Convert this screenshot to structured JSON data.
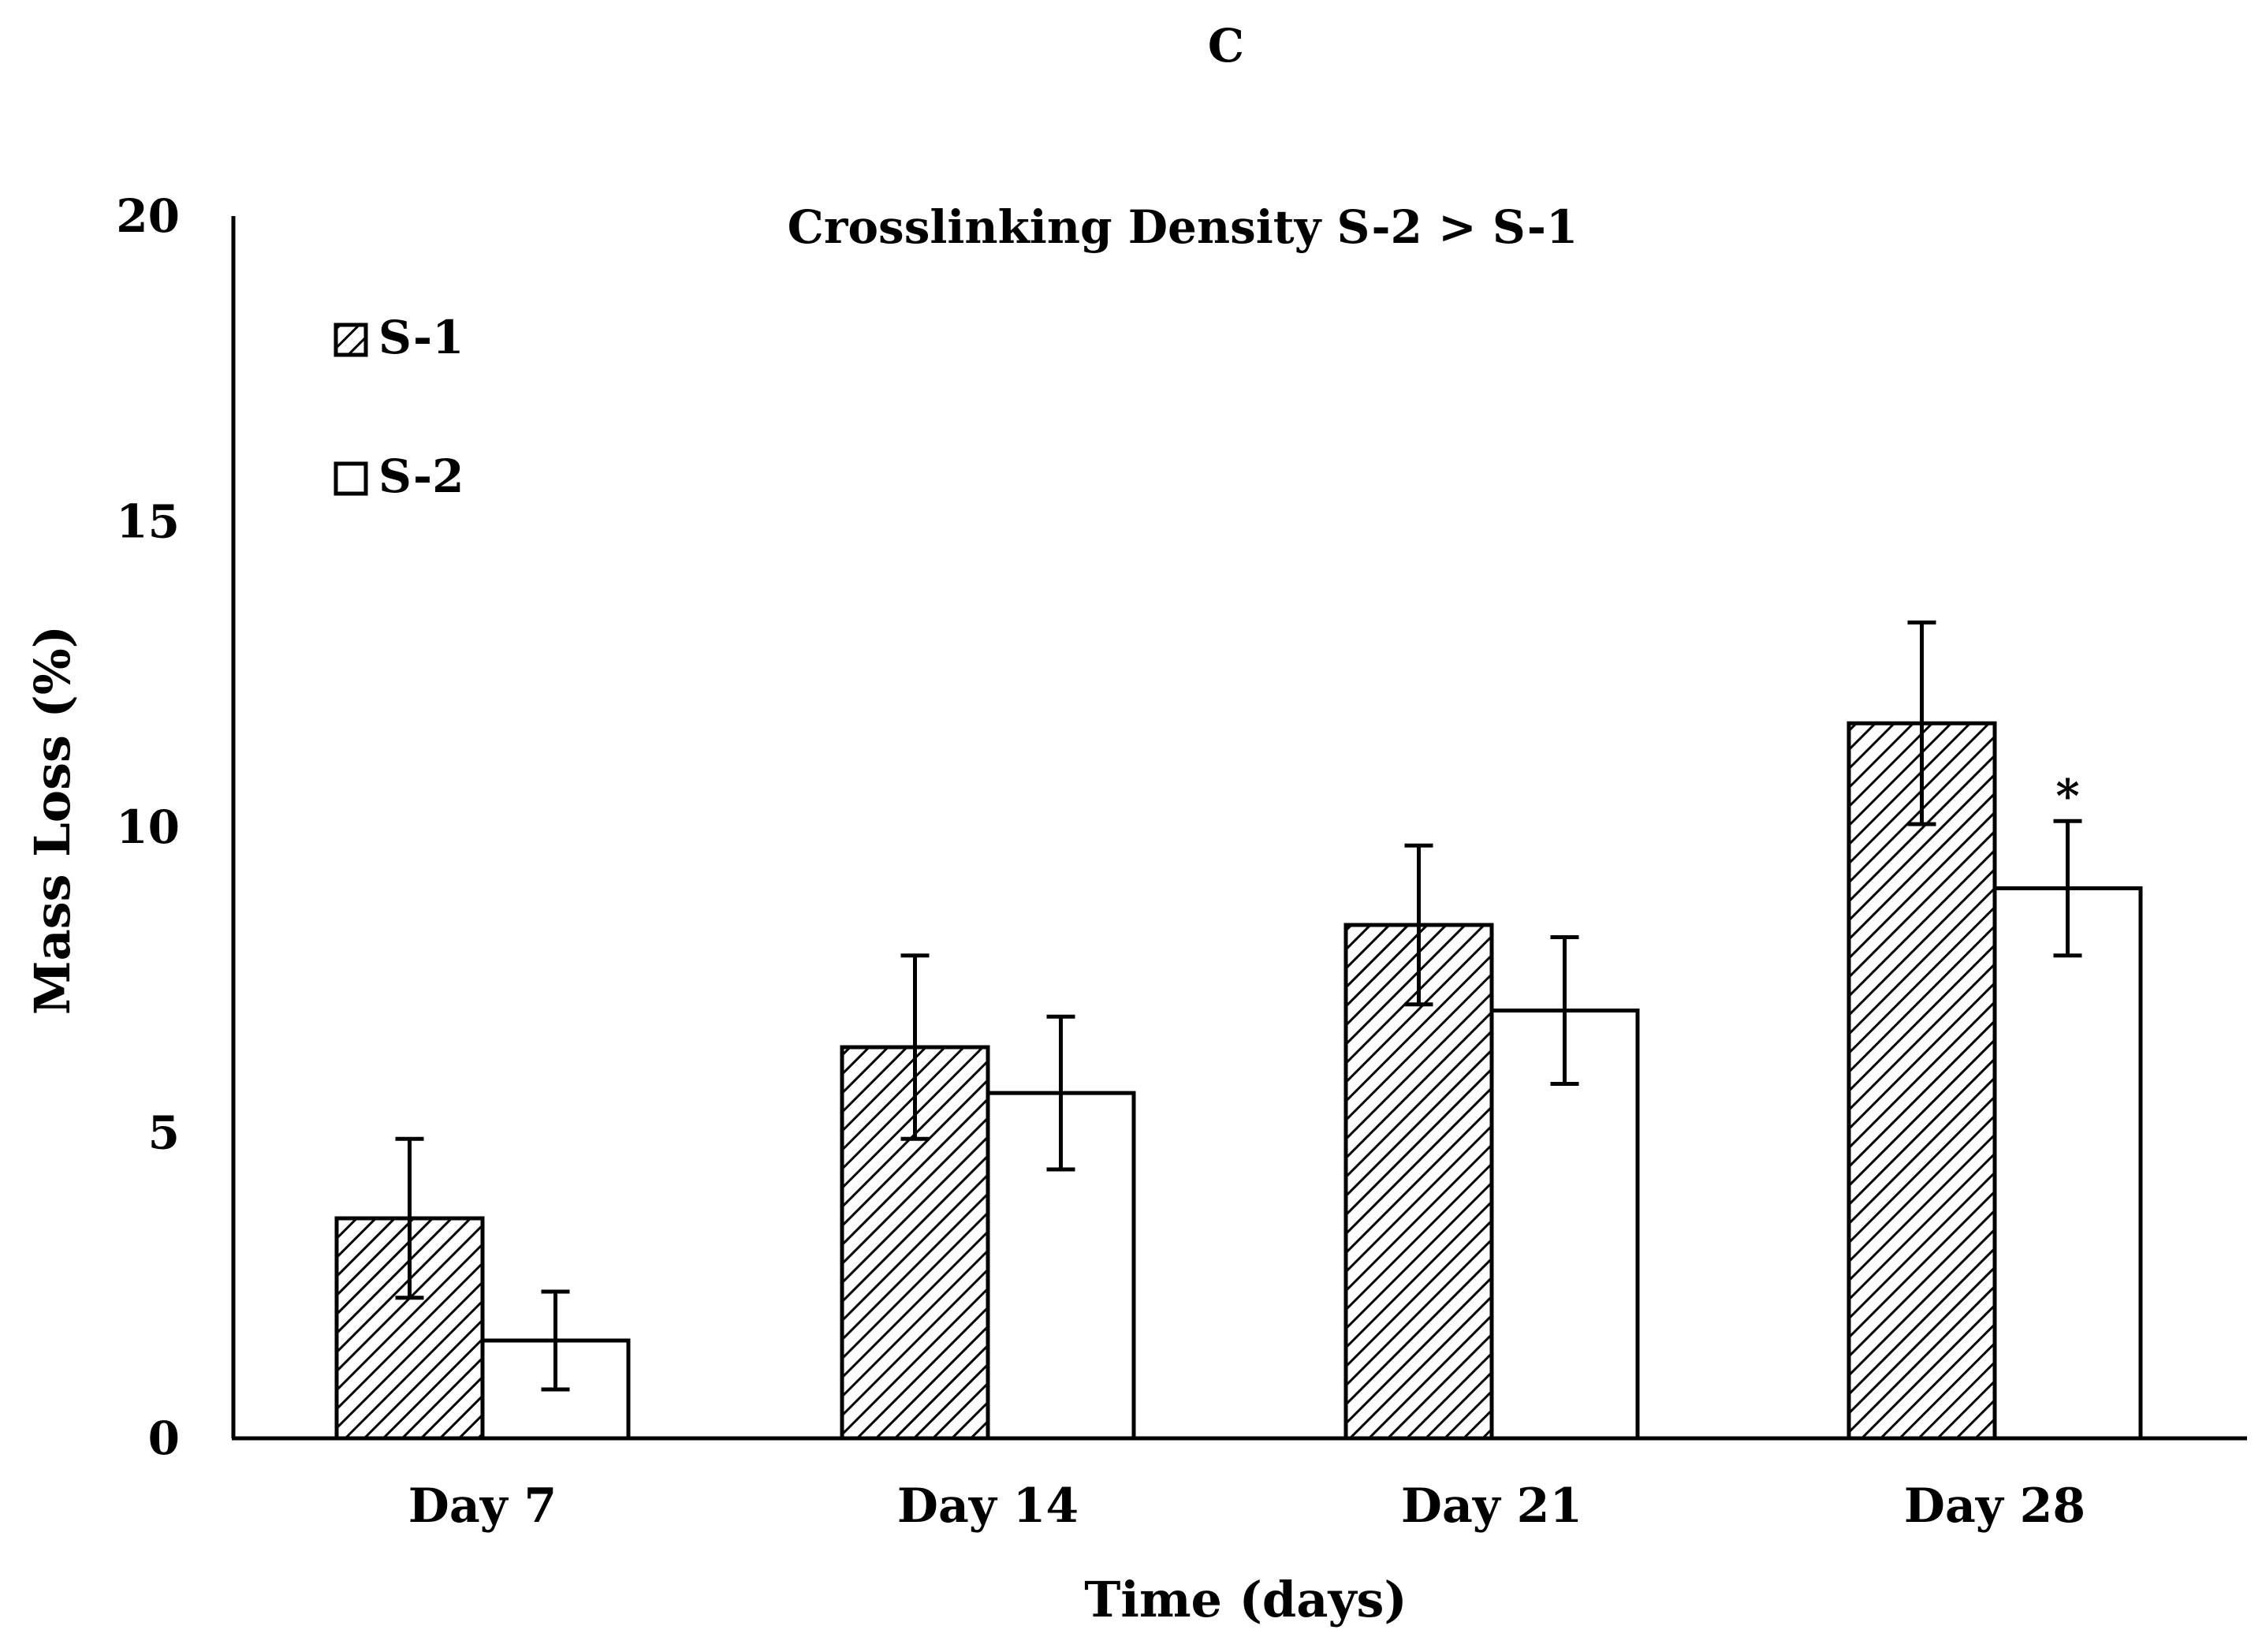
{
  "panel_label": "C",
  "chart_data": {
    "type": "bar",
    "title": "Crosslinking Density S-2 > S-1",
    "xlabel": "Time (days)",
    "ylabel": "Mass Loss (%)",
    "ylim": [
      0,
      20
    ],
    "yticks": [
      "0",
      "5",
      "10",
      "15",
      "20"
    ],
    "grid": false,
    "legend_position": "top-left",
    "categories": [
      "Day 7",
      "Day 14",
      "Day 21",
      "Day 28"
    ],
    "series": [
      {
        "name": "S-1",
        "fill": "hatched",
        "values": [
          3.6,
          6.4,
          8.4,
          11.7
        ],
        "errors": [
          1.3,
          1.5,
          1.3,
          1.65
        ],
        "markers": [
          "",
          "",
          "",
          ""
        ]
      },
      {
        "name": "S-2",
        "fill": "white",
        "values": [
          1.6,
          5.65,
          7.0,
          9.0
        ],
        "errors": [
          0.8,
          1.25,
          1.2,
          1.1
        ],
        "markers": [
          "",
          "",
          "",
          "*"
        ]
      }
    ],
    "colors": {
      "stroke": "#000000",
      "background": "#ffffff"
    }
  }
}
